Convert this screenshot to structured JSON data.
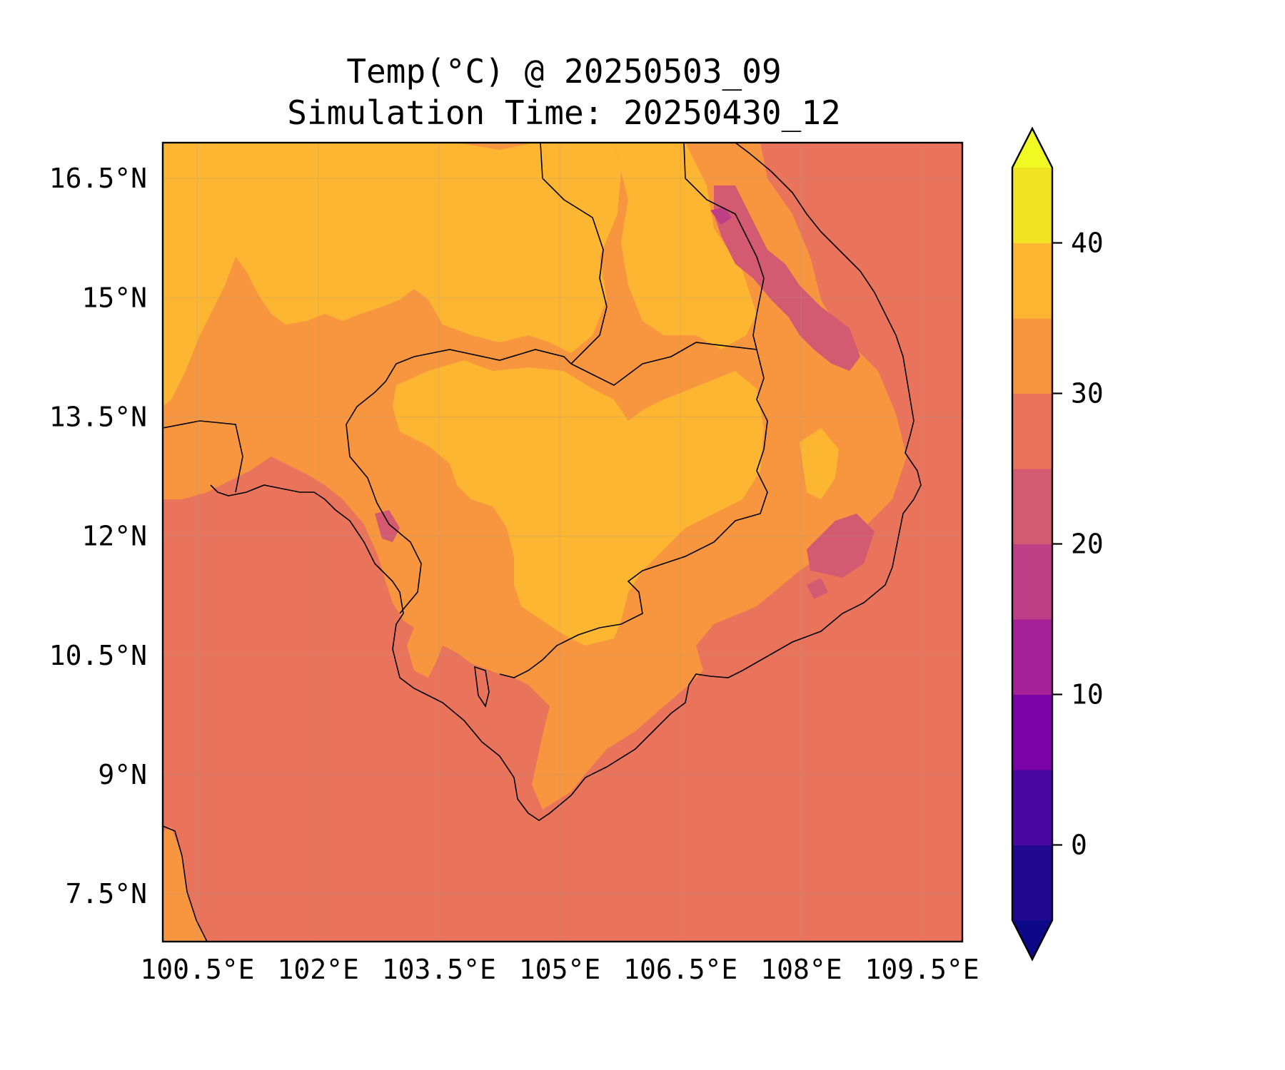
{
  "title": {
    "line1": "Temp(°C) @ 20250503_09",
    "line2": "Simulation Time: 20250430_12"
  },
  "map": {
    "region": "Indochina (Thailand, Laos, Cambodia, southern Vietnam)",
    "lon_range": [
      100.07,
      110.0
    ],
    "lat_range": [
      6.9,
      16.95
    ],
    "x_ticks": [
      {
        "value": 100.5,
        "label": "100.5°E"
      },
      {
        "value": 102,
        "label": "102°E"
      },
      {
        "value": 103.5,
        "label": "103.5°E"
      },
      {
        "value": 105,
        "label": "105°E"
      },
      {
        "value": 106.5,
        "label": "106.5°E"
      },
      {
        "value": 108,
        "label": "108°E"
      },
      {
        "value": 109.5,
        "label": "109.5°E"
      }
    ],
    "y_ticks": [
      {
        "value": 16.5,
        "label": "16.5°N"
      },
      {
        "value": 15,
        "label": "15°N"
      },
      {
        "value": 13.5,
        "label": "13.5°N"
      },
      {
        "value": 12,
        "label": "12°N"
      },
      {
        "value": 10.5,
        "label": "10.5°N"
      },
      {
        "value": 9,
        "label": "9°N"
      },
      {
        "value": 7.5,
        "label": "7.5°N"
      }
    ],
    "gridlines": true,
    "colors": {
      "t25_30": "#e9745b",
      "t30_35": "#f7963e",
      "t35_40": "#fdb631",
      "t20_25": "#d45a72",
      "t15_20": "#bf3f87"
    }
  },
  "colorbar": {
    "levels": [
      -5,
      0,
      5,
      10,
      15,
      20,
      25,
      30,
      35,
      40,
      45
    ],
    "colors": [
      "#22078f",
      "#4a06a0",
      "#7a04a8",
      "#a62098",
      "#bf3f87",
      "#d45a72",
      "#e9745b",
      "#f7963e",
      "#fdb631",
      "#f2e322"
    ],
    "under_color": "#0d0887",
    "over_color": "#f0f921",
    "extend": "both",
    "ticks": [
      {
        "value": 0,
        "label": "0"
      },
      {
        "value": 10,
        "label": "10"
      },
      {
        "value": 20,
        "label": "20"
      },
      {
        "value": 30,
        "label": "30"
      },
      {
        "value": 40,
        "label": "40"
      }
    ]
  }
}
